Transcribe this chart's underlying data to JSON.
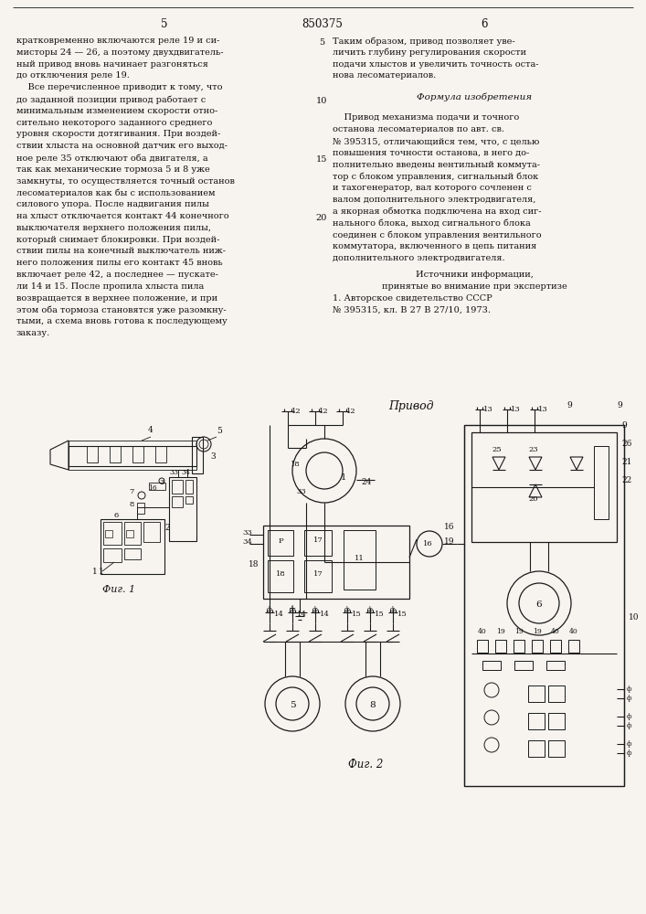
{
  "page_number": "850375",
  "left_page": "5",
  "right_page": "6",
  "left_text": [
    "кратковременно включаются реле 19 и си-",
    "мисторы 24 — 26, а поэтому двухдвигатель-",
    "ный привод вновь начинает разгоняться",
    "до отключения реле 19.",
    "    Все перечисленное приводит к тому, что",
    "до заданной позиции привод работает с",
    "минимальным изменением скорости отно-",
    "сительно некоторого заданного среднего",
    "уровня скорости дотягивания. При воздей-",
    "ствии хлыста на основной датчик его выход-",
    "ное реле 35 отключают оба двигателя, а",
    "так как механические тормоза 5 и 8 уже",
    "замкнуты, то осуществляется точный останов",
    "лесоматериалов как бы с использованием",
    "силового упора. После надвигания пилы",
    "на хлыст отключается контакт 44 конечного",
    "выключателя верхнего положения пилы,",
    "который снимает блокировки. При воздей-",
    "ствии пилы на конечный выключатель ниж-",
    "него положения пилы его контакт 45 вновь",
    "включает реле 42, а последнее — пускате-",
    "ли 14 и 15. После пропила хлыста пила",
    "возвращается в верхнее положение, и при",
    "этом оба тормоза становятся уже разомкну-",
    "тыми, а схема вновь готова к последующему",
    "заказу."
  ],
  "right_text_top": [
    "Таким образом, привод позволяет уве-",
    "личить глубину регулирования скорости",
    "подачи хлыстов и увеличить точность оста-",
    "нова лесоматериалов."
  ],
  "formula_title": "Формула изобретения",
  "formula_text": [
    "    Привод механизма подачи и точного",
    "останова лесоматериалов по авт. св.",
    "№ 395315, отличающийся тем, что, с целью",
    "повышения точности останова, в него до-",
    "полнительно введены вентильный коммута-",
    "тор с блоком управления, сигнальный блок",
    "и тахогенератор, вал которого сочленен с",
    "валом дополнительного электродвигателя,",
    "а якорная обмотка подключена на вход сиг-",
    "нального блока, выход сигнального блока",
    "соединен с блоком управления вентильного",
    "коммутатора, включенного в цепь питания",
    "дополнительного электродвигателя."
  ],
  "sources_title": "Источники информации,",
  "sources_subtitle": "принятые во внимание при экспертизе",
  "source_1": "1. Авторское свидетельство СССР",
  "source_2": "№ 395315, кл. В 27 В 27/10, 1973.",
  "fig1_label": "Фиг. 1",
  "fig2_label": "Фиг. 2",
  "privod_label": "Привод",
  "line_nums": [
    "5",
    "10",
    "15",
    "20"
  ],
  "bg_color": "#f7f4ef",
  "text_color": "#111111",
  "diagram_color": "#1a1a1a"
}
